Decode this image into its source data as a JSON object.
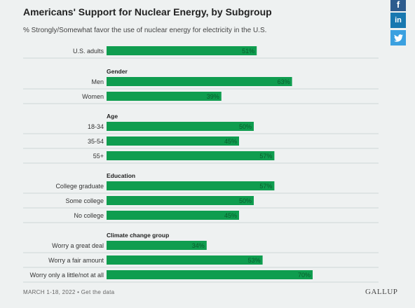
{
  "title": "Americans' Support for Nuclear Energy, by Subgroup",
  "subtitle": "% Strongly/Somewhat favor the use of nuclear energy for electricity in the U.S.",
  "footer": {
    "date": "MARCH 1-18, 2022",
    "separator": "•",
    "link_label": "Get the data"
  },
  "brand": "GALLUP",
  "share": {
    "facebook_icon": "facebook-icon",
    "linkedin_icon": "linkedin-icon",
    "twitter_icon": "twitter-icon"
  },
  "colors": {
    "bar": "#0f9d4f",
    "background": "#eef1f1",
    "separator": "#cfd6d6"
  },
  "chart_data": {
    "type": "bar",
    "orientation": "horizontal",
    "xlim": [
      0,
      100
    ],
    "value_suffix": "%",
    "groups": [
      {
        "heading": "",
        "items": [
          {
            "label": "U.S. adults",
            "value": 51
          }
        ]
      },
      {
        "heading": "Gender",
        "items": [
          {
            "label": "Men",
            "value": 63
          },
          {
            "label": "Women",
            "value": 39
          }
        ]
      },
      {
        "heading": "Age",
        "items": [
          {
            "label": "18-34",
            "value": 50
          },
          {
            "label": "35-54",
            "value": 45
          },
          {
            "label": "55+",
            "value": 57
          }
        ]
      },
      {
        "heading": "Education",
        "items": [
          {
            "label": "College graduate",
            "value": 57
          },
          {
            "label": "Some college",
            "value": 50
          },
          {
            "label": "No college",
            "value": 45
          }
        ]
      },
      {
        "heading": "Climate change group",
        "items": [
          {
            "label": "Worry a great deal",
            "value": 34
          },
          {
            "label": "Worry a fair amount",
            "value": 53
          },
          {
            "label": "Worry only a little/not at all",
            "value": 70
          }
        ]
      }
    ]
  }
}
